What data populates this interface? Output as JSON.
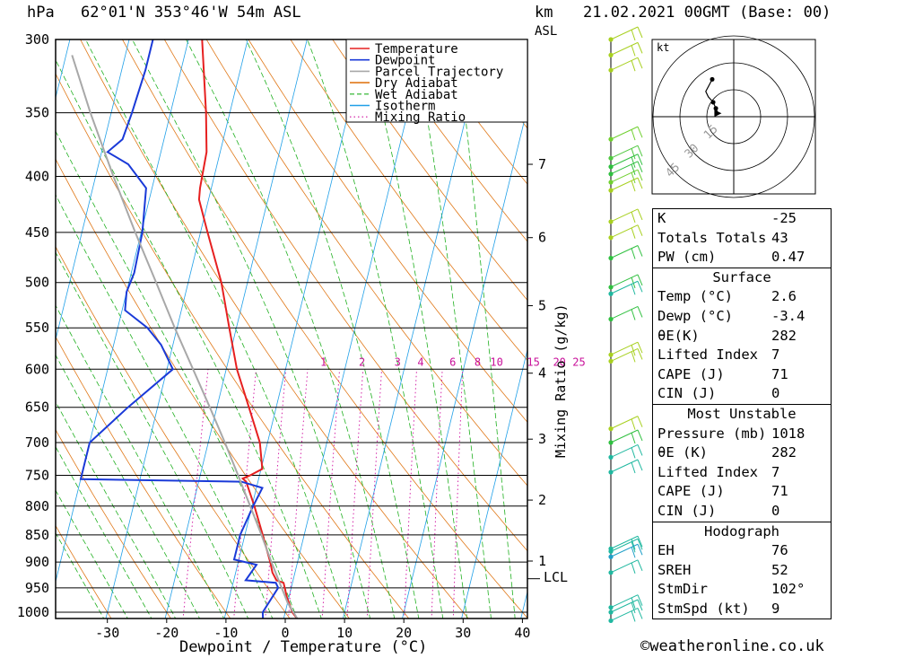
{
  "header": {
    "unit_left": "hPa",
    "location": "62°01'N  353°46'W  54m  ASL",
    "unit_km": "km",
    "unit_asl": "ASL",
    "datetime": "21.02.2021  00GMT  (Base: 00)"
  },
  "chart_data": {
    "type": "line",
    "xlabel": "Dewpoint / Temperature (°C)",
    "ylabel": "hPa",
    "xlim": [
      -40,
      40
    ],
    "ylim": [
      1018,
      300
    ],
    "x_ticks": [
      -30,
      -20,
      -10,
      0,
      10,
      20,
      30,
      40
    ],
    "pressure_levels": [
      300,
      350,
      400,
      450,
      500,
      550,
      600,
      650,
      700,
      750,
      800,
      850,
      900,
      950,
      1000
    ],
    "km_ticks": [
      "1",
      "2",
      "3",
      "4",
      "5",
      "6",
      "7"
    ],
    "km_pressures": [
      898,
      790,
      695,
      605,
      525,
      455,
      390
    ],
    "lcl_label": "LCL",
    "lcl_pressure": 932,
    "mixing_ratio_axis_label": "Mixing Ratio (g/kg)",
    "mixing_ratio_labels": [
      "1",
      "2",
      "3",
      "4",
      "6",
      "8",
      "10",
      "15",
      "20",
      "25"
    ],
    "mixing_ratio_label_temps": [
      -3.6,
      2.9,
      8.9,
      12.8,
      18.2,
      22.4,
      25.6,
      31.8,
      36.2,
      39.5
    ],
    "legend_position": "top-right",
    "legend": [
      {
        "name": "Temperature",
        "color": "#e62020",
        "style": "solid"
      },
      {
        "name": "Dewpoint",
        "color": "#1a3ad8",
        "style": "solid"
      },
      {
        "name": "Parcel Trajectory",
        "color": "#a8a8a8",
        "style": "solid"
      },
      {
        "name": "Dry Adiabat",
        "color": "#e07818",
        "style": "solid"
      },
      {
        "name": "Wet Adiabat",
        "color": "#20b020",
        "style": "dashed"
      },
      {
        "name": "Isotherm",
        "color": "#20a0e8",
        "style": "solid"
      },
      {
        "name": "Mixing Ratio",
        "color": "#d010a0",
        "style": "dotted"
      }
    ],
    "series": [
      {
        "name": "Temperature",
        "color": "#e62020",
        "points": [
          [
            1018,
            2.6
          ],
          [
            1000,
            1.2
          ],
          [
            970,
            -0.3
          ],
          [
            940,
            -1.5
          ],
          [
            935,
            -2.8
          ],
          [
            920,
            -3.8
          ],
          [
            900,
            -4.6
          ],
          [
            850,
            -7.0
          ],
          [
            800,
            -9.6
          ],
          [
            760,
            -12.0
          ],
          [
            755,
            -12.7
          ],
          [
            750,
            -11.6
          ],
          [
            740,
            -9.8
          ],
          [
            700,
            -11.3
          ],
          [
            650,
            -14.6
          ],
          [
            600,
            -18.2
          ],
          [
            550,
            -21.2
          ],
          [
            500,
            -24.4
          ],
          [
            450,
            -28.8
          ],
          [
            420,
            -31.6
          ],
          [
            410,
            -31.9
          ],
          [
            380,
            -32.3
          ],
          [
            350,
            -34.0
          ],
          [
            300,
            -37.7
          ]
        ]
      },
      {
        "name": "Dewpoint",
        "color": "#1a3ad8",
        "points": [
          [
            1018,
            -3.4
          ],
          [
            1000,
            -3.8
          ],
          [
            950,
            -2.2
          ],
          [
            940,
            -2.8
          ],
          [
            935,
            -8.0
          ],
          [
            905,
            -6.8
          ],
          [
            895,
            -10.8
          ],
          [
            875,
            -10.8
          ],
          [
            850,
            -10.8
          ],
          [
            800,
            -9.8
          ],
          [
            770,
            -9.0
          ],
          [
            760,
            -12.8
          ],
          [
            756,
            -40.0
          ],
          [
            700,
            -40.0
          ],
          [
            650,
            -35.0
          ],
          [
            600,
            -29.0
          ],
          [
            570,
            -32.0
          ],
          [
            550,
            -35.0
          ],
          [
            530,
            -39.5
          ],
          [
            510,
            -40.0
          ],
          [
            490,
            -39.5
          ],
          [
            450,
            -39.8
          ],
          [
            410,
            -41.0
          ],
          [
            390,
            -45.0
          ],
          [
            380,
            -49.0
          ],
          [
            370,
            -47.0
          ],
          [
            350,
            -46.5
          ],
          [
            320,
            -46.0
          ],
          [
            300,
            -46.0
          ]
        ]
      },
      {
        "name": "Parcel Trajectory",
        "color": "#a8a8a8",
        "points": [
          [
            1018,
            2.6
          ],
          [
            980,
            0.0
          ],
          [
            932,
            -2.6
          ],
          [
            900,
            -4.4
          ],
          [
            850,
            -7.2
          ],
          [
            800,
            -10.3
          ],
          [
            750,
            -13.6
          ],
          [
            700,
            -17.2
          ],
          [
            650,
            -21.2
          ],
          [
            600,
            -25.6
          ],
          [
            550,
            -30.4
          ],
          [
            500,
            -35.4
          ],
          [
            450,
            -41.0
          ],
          [
            400,
            -47.0
          ],
          [
            350,
            -53.5
          ],
          [
            310,
            -59.0
          ]
        ]
      }
    ]
  },
  "hodograph": {
    "unit": "kt",
    "ring_labels": [
      "15",
      "30",
      "45"
    ],
    "trace_points": [
      [
        102,
        9
      ],
      [
        115,
        11
      ],
      [
        125,
        14
      ],
      [
        128,
        18
      ],
      [
        132,
        21
      ],
      [
        150,
        24
      ]
    ]
  },
  "wind_barbs": {
    "pressures": [
      300,
      310,
      320,
      370,
      385,
      392,
      398,
      405,
      412,
      440,
      455,
      475,
      505,
      512,
      540,
      582,
      590,
      680,
      700,
      722,
      745,
      875,
      880,
      890,
      920,
      990,
      1000,
      1018
    ],
    "colors": [
      "#a8d020",
      "#a8d020",
      "#a8d020",
      "#70d030",
      "#50c840",
      "#30c040",
      "#30c040",
      "#70d030",
      "#a8d020",
      "#a8d020",
      "#a8d020",
      "#30c040",
      "#30c040",
      "#20b8a0",
      "#30c040",
      "#a8d020",
      "#a8d020",
      "#a8d020",
      "#30c040",
      "#20b8a0",
      "#20b8a0",
      "#20b8a0",
      "#20b8a0",
      "#20a0c8",
      "#20b8a0",
      "#20b8a0",
      "#20b8a0",
      "#20b8a0"
    ]
  },
  "indices": {
    "general": [
      {
        "label": "K",
        "value": "-25"
      },
      {
        "label": "Totals Totals",
        "value": "43"
      },
      {
        "label": "PW (cm)",
        "value": "0.47"
      }
    ],
    "surface": {
      "title": "Surface",
      "rows": [
        {
          "label": "Temp (°C)",
          "value": "2.6"
        },
        {
          "label": "Dewp (°C)",
          "value": "-3.4"
        },
        {
          "label": "θE(K)",
          "value": "282"
        },
        {
          "label": "Lifted Index",
          "value": "7"
        },
        {
          "label": "CAPE (J)",
          "value": "71"
        },
        {
          "label": "CIN (J)",
          "value": "0"
        }
      ]
    },
    "most_unstable": {
      "title": "Most Unstable",
      "rows": [
        {
          "label": "Pressure (mb)",
          "value": "1018"
        },
        {
          "label": "θE (K)",
          "value": "282"
        },
        {
          "label": "Lifted Index",
          "value": "7"
        },
        {
          "label": "CAPE (J)",
          "value": "71"
        },
        {
          "label": "CIN (J)",
          "value": "0"
        }
      ]
    },
    "hodograph_params": {
      "title": "Hodograph",
      "rows": [
        {
          "label": "EH",
          "value": "76"
        },
        {
          "label": "SREH",
          "value": "52"
        },
        {
          "label": "StmDir",
          "value": "102°"
        },
        {
          "label": "StmSpd (kt)",
          "value": "9"
        }
      ]
    }
  },
  "credit": "©weatheronline.co.uk"
}
